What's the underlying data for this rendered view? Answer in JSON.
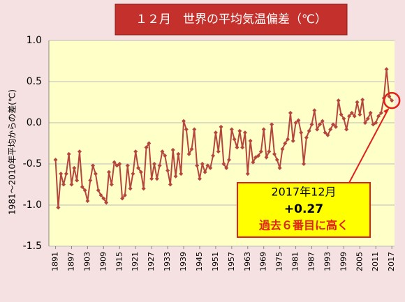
{
  "chart_data": {
    "type": "line",
    "title": "１２月　世界の平均気温偏差（℃）",
    "ylabel": "1981～2010年平均からの差(℃)",
    "x": [
      1891,
      1892,
      1893,
      1894,
      1895,
      1896,
      1897,
      1898,
      1899,
      1900,
      1901,
      1902,
      1903,
      1904,
      1905,
      1906,
      1907,
      1908,
      1909,
      1910,
      1911,
      1912,
      1913,
      1914,
      1915,
      1916,
      1917,
      1918,
      1919,
      1920,
      1921,
      1922,
      1923,
      1924,
      1925,
      1926,
      1927,
      1928,
      1929,
      1930,
      1931,
      1932,
      1933,
      1934,
      1935,
      1936,
      1937,
      1938,
      1939,
      1940,
      1941,
      1942,
      1943,
      1944,
      1945,
      1946,
      1947,
      1948,
      1949,
      1950,
      1951,
      1952,
      1953,
      1954,
      1955,
      1956,
      1957,
      1958,
      1959,
      1960,
      1961,
      1962,
      1963,
      1964,
      1965,
      1966,
      1967,
      1968,
      1969,
      1970,
      1971,
      1972,
      1973,
      1974,
      1975,
      1976,
      1977,
      1978,
      1979,
      1980,
      1981,
      1982,
      1983,
      1984,
      1985,
      1986,
      1987,
      1988,
      1989,
      1990,
      1991,
      1992,
      1993,
      1994,
      1995,
      1996,
      1997,
      1998,
      1999,
      2000,
      2001,
      2002,
      2003,
      2004,
      2005,
      2006,
      2007,
      2008,
      2009,
      2010,
      2011,
      2012,
      2013,
      2014,
      2015,
      2016,
      2017
    ],
    "series": [
      {
        "name": "12月",
        "color": "#b5463f",
        "values": [
          -0.45,
          -1.03,
          -0.62,
          -0.75,
          -0.62,
          -0.38,
          -0.75,
          -0.55,
          -0.7,
          -0.35,
          -0.78,
          -0.82,
          -0.95,
          -0.7,
          -0.52,
          -0.62,
          -0.82,
          -0.88,
          -0.92,
          -0.97,
          -0.6,
          -0.75,
          -0.48,
          -0.52,
          -0.5,
          -0.92,
          -0.88,
          -0.52,
          -0.8,
          -0.62,
          -0.35,
          -0.55,
          -0.6,
          -0.8,
          -0.3,
          -0.25,
          -0.68,
          -0.5,
          -0.68,
          -0.52,
          -0.35,
          -0.4,
          -0.58,
          -0.75,
          -0.33,
          -0.65,
          -0.38,
          -0.62,
          0.02,
          -0.08,
          -0.38,
          -0.32,
          -0.08,
          -0.52,
          -0.68,
          -0.5,
          -0.6,
          -0.52,
          -0.55,
          -0.4,
          -0.12,
          -0.35,
          -0.05,
          -0.5,
          -0.55,
          -0.45,
          -0.08,
          -0.2,
          -0.3,
          -0.1,
          -0.3,
          -0.12,
          -0.62,
          -0.22,
          -0.48,
          -0.42,
          -0.4,
          -0.35,
          -0.08,
          -0.42,
          -0.35,
          -0.02,
          -0.38,
          -0.45,
          -0.55,
          -0.32,
          -0.25,
          -0.2,
          0.12,
          -0.22,
          0.0,
          0.03,
          -0.12,
          -0.5,
          -0.18,
          -0.1,
          -0.02,
          0.15,
          -0.08,
          -0.02,
          0.02,
          -0.12,
          -0.15,
          -0.08,
          -0.02,
          -0.05,
          0.27,
          0.1,
          0.05,
          -0.08,
          0.08,
          0.12,
          0.08,
          0.25,
          0.1,
          0.28,
          0.0,
          0.05,
          0.12,
          -0.02,
          0.0,
          0.08,
          0.12,
          0.3,
          0.65,
          0.32,
          0.27
        ]
      }
    ],
    "xlim": [
      1888.5,
      2018
    ],
    "xticks": [
      1891,
      1897,
      1903,
      1909,
      1915,
      1921,
      1927,
      1933,
      1939,
      1945,
      1951,
      1957,
      1963,
      1969,
      1975,
      1981,
      1987,
      1993,
      1999,
      2005,
      2011,
      2017
    ],
    "ylim": [
      -1.5,
      1
    ],
    "yticks": [
      -1.5,
      {
        "value": -1,
        "label": "-1.0"
      },
      -0.5,
      {
        "value": 0,
        "label": "0.0"
      },
      0.5,
      {
        "value": 1,
        "label": "1.0"
      }
    ],
    "grid": true,
    "annotation": {
      "lines": [
        "2017年12月",
        "+0.27",
        "過去６番目に高く"
      ]
    }
  }
}
